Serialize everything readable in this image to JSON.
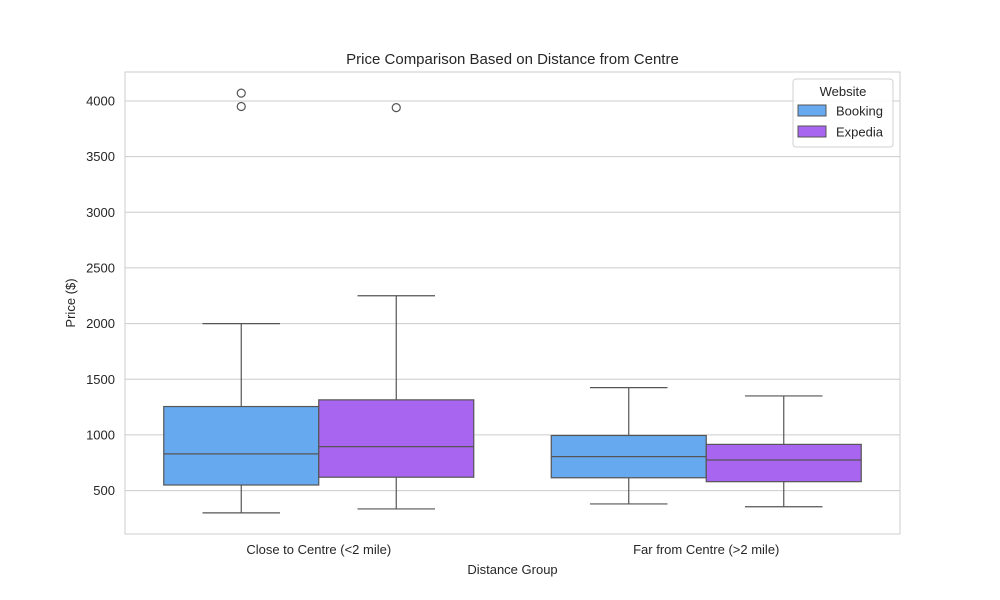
{
  "chart_data": {
    "type": "box",
    "title": "Price Comparison Based on Distance from Centre",
    "xlabel": "Distance Group",
    "ylabel": "Price ($)",
    "ylim": [
      110,
      4260
    ],
    "yticks": [
      500,
      1000,
      1500,
      2000,
      2500,
      3000,
      3500,
      4000
    ],
    "grid": true,
    "categories": [
      "Close to Centre (<2 mile)",
      "Far from Centre (>2 mile)"
    ],
    "legend": {
      "title": "Website",
      "position": "top-right"
    },
    "series": [
      {
        "name": "Booking",
        "color": "#66a9ee",
        "boxes": [
          {
            "whisker_low": 300,
            "q1": 550,
            "median": 830,
            "q3": 1255,
            "whisker_high": 2000,
            "outliers": [
              3950,
              4070
            ]
          },
          {
            "whisker_low": 380,
            "q1": 615,
            "median": 805,
            "q3": 995,
            "whisker_high": 1425,
            "outliers": []
          }
        ]
      },
      {
        "name": "Expedia",
        "color": "#a865ef",
        "boxes": [
          {
            "whisker_low": 335,
            "q1": 620,
            "median": 895,
            "q3": 1315,
            "whisker_high": 2250,
            "outliers": [
              3940
            ]
          },
          {
            "whisker_low": 355,
            "q1": 580,
            "median": 775,
            "q3": 915,
            "whisker_high": 1350,
            "outliers": []
          }
        ]
      }
    ]
  }
}
